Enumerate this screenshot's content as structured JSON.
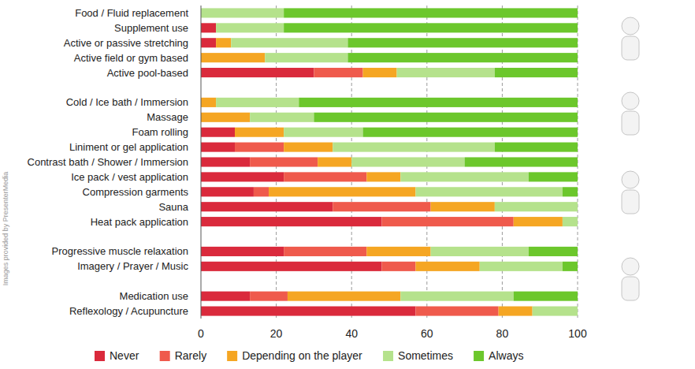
{
  "chart_data": {
    "type": "bar",
    "orientation": "horizontal",
    "stacked": true,
    "grid": true,
    "legend": "bottom",
    "annotations": [
      "Images provided by PresenterMedia"
    ],
    "categories": [
      "Food / Fluid replacement",
      "Supplement use",
      "Active or passive stretching",
      "Active field or gym based",
      "Active pool-based",
      "Cold / Ice bath / Immersion",
      "Massage",
      "Foam rolling",
      "Liniment or gel application",
      "Contrast bath / Shower / Immersion",
      "Ice pack / vest application",
      "Compression garments",
      "Sauna",
      "Heat pack application",
      "Progressive muscle relaxation",
      "Imagery / Prayer / Music",
      "Medication use",
      "Reflexology / Acupuncture"
    ],
    "series": [
      {
        "name": "Never",
        "color": "#da2a3c",
        "values": [
          0,
          4,
          4,
          0,
          30,
          0,
          0,
          9,
          9,
          13,
          22,
          14,
          35,
          48,
          22,
          48,
          13,
          57
        ]
      },
      {
        "name": "Rarely",
        "color": "#ef5a4c",
        "values": [
          0,
          0,
          0,
          0,
          13,
          0,
          0,
          0,
          13,
          18,
          22,
          4,
          26,
          35,
          22,
          9,
          10,
          22
        ]
      },
      {
        "name": "Depending on the player",
        "color": "#f5a623",
        "values": [
          0,
          0,
          4,
          17,
          9,
          4,
          13,
          13,
          13,
          9,
          9,
          39,
          17,
          13,
          17,
          17,
          30,
          9
        ]
      },
      {
        "name": "Sometimes",
        "color": "#b5e28c",
        "values": [
          22,
          18,
          31,
          22,
          26,
          22,
          17,
          21,
          43,
          30,
          34,
          39,
          22,
          4,
          26,
          22,
          30,
          12
        ]
      },
      {
        "name": "Always",
        "color": "#6cc72c",
        "values": [
          78,
          78,
          61,
          61,
          22,
          74,
          70,
          57,
          22,
          30,
          13,
          4,
          0,
          0,
          13,
          4,
          17,
          0
        ]
      }
    ],
    "xlim": [
      0,
      100
    ],
    "xticks": [
      0,
      20,
      40,
      60,
      80,
      100
    ]
  }
}
